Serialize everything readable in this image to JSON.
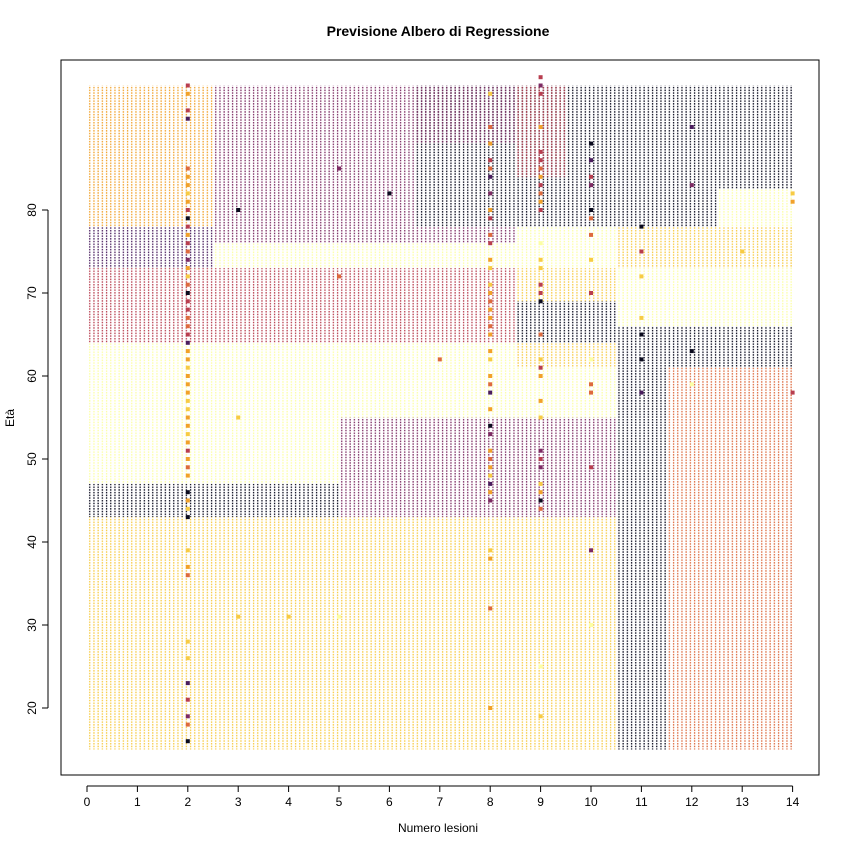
{
  "chart_data": {
    "type": "scatter",
    "title": "Previsione Albero di Regressione",
    "xlabel": "Numero lesioni",
    "ylabel": "Età",
    "xlim": [
      -1,
      15
    ],
    "ylim": [
      13,
      98
    ],
    "xticks": [
      "0",
      "1",
      "2",
      "3",
      "4",
      "5",
      "6",
      "7",
      "8",
      "9",
      "10",
      "11",
      "12",
      "13",
      "14"
    ],
    "yticks": [
      "20",
      "30",
      "40",
      "50",
      "60",
      "70",
      "80"
    ],
    "grid": false,
    "legend": "none",
    "colors": {
      "level0": "#fcffa4",
      "level1": "#f7cb44",
      "level2": "#f1a12a",
      "level3": "#dd6a3e",
      "level4": "#b83e4f",
      "level5": "#7d2b63",
      "level6": "#4a1d5e",
      "level7": "#0b0b1e"
    },
    "regions": [
      {
        "xmin": 0,
        "xmax": 2.5,
        "ymin": 78,
        "ymax": 95,
        "level": 2
      },
      {
        "xmin": 2.5,
        "xmax": 6.5,
        "ymin": 78,
        "ymax": 95,
        "level": 5
      },
      {
        "xmin": 6.5,
        "xmax": 9.5,
        "ymin": 78,
        "ymax": 95,
        "level": 7
      },
      {
        "xmin": 9.5,
        "xmax": 12.5,
        "ymin": 78,
        "ymax": 95,
        "level": 7
      },
      {
        "xmin": 12.5,
        "xmax": 14,
        "ymin": 82.5,
        "ymax": 95,
        "level": 7
      },
      {
        "xmin": 12.5,
        "xmax": 14,
        "ymin": 78,
        "ymax": 82.5,
        "level": 0
      },
      {
        "xmin": 6.5,
        "xmax": 8.5,
        "ymin": 88,
        "ymax": 95,
        "level": 5
      },
      {
        "xmin": 8.5,
        "xmax": 9.5,
        "ymin": 84,
        "ymax": 95,
        "level": 4
      },
      {
        "xmin": 0,
        "xmax": 2.5,
        "ymin": 73,
        "ymax": 78,
        "level": 6
      },
      {
        "xmin": 2.5,
        "xmax": 8.5,
        "ymin": 76,
        "ymax": 78,
        "level": 5
      },
      {
        "xmin": 8.5,
        "xmax": 10.5,
        "ymin": 73,
        "ymax": 78,
        "level": 0
      },
      {
        "xmin": 10.5,
        "xmax": 14,
        "ymin": 73,
        "ymax": 78,
        "level": 1
      },
      {
        "xmin": 2.5,
        "xmax": 8.5,
        "ymin": 73,
        "ymax": 76,
        "level": 0
      },
      {
        "xmin": 0,
        "xmax": 8.5,
        "ymin": 64,
        "ymax": 73,
        "level": 4
      },
      {
        "xmin": 8.5,
        "xmax": 10.5,
        "ymin": 69,
        "ymax": 73,
        "level": 1
      },
      {
        "xmin": 8.5,
        "xmax": 10.5,
        "ymin": 64,
        "ymax": 69,
        "level": 7
      },
      {
        "xmin": 10.5,
        "xmax": 14,
        "ymin": 66,
        "ymax": 73,
        "level": 0
      },
      {
        "xmin": 10.5,
        "xmax": 14,
        "ymin": 61,
        "ymax": 66,
        "level": 7
      },
      {
        "xmin": 0,
        "xmax": 8.5,
        "ymin": 61,
        "ymax": 64,
        "level": 0
      },
      {
        "xmin": 8.5,
        "xmax": 10.5,
        "ymin": 61,
        "ymax": 64,
        "level": 1
      },
      {
        "xmin": 0,
        "xmax": 5,
        "ymin": 47,
        "ymax": 61,
        "level": 0
      },
      {
        "xmin": 5,
        "xmax": 10.5,
        "ymin": 55,
        "ymax": 61,
        "level": 0
      },
      {
        "xmin": 10.5,
        "xmax": 11.5,
        "ymin": 15,
        "ymax": 61,
        "level": 7
      },
      {
        "xmin": 11.5,
        "xmax": 14,
        "ymin": 15,
        "ymax": 61,
        "level": 3
      },
      {
        "xmin": 5,
        "xmax": 10.5,
        "ymin": 43,
        "ymax": 55,
        "level": 5
      },
      {
        "xmin": 0,
        "xmax": 5,
        "ymin": 43,
        "ymax": 47,
        "level": 7
      },
      {
        "xmin": 0,
        "xmax": 10.5,
        "ymin": 15,
        "ymax": 43,
        "level": 1
      }
    ],
    "points": [
      {
        "x": 2,
        "y": 95,
        "level": 4
      },
      {
        "x": 2,
        "y": 94,
        "level": 2
      },
      {
        "x": 2,
        "y": 92,
        "level": 4
      },
      {
        "x": 2,
        "y": 91,
        "level": 6
      },
      {
        "x": 2,
        "y": 85,
        "level": 3
      },
      {
        "x": 2,
        "y": 84,
        "level": 2
      },
      {
        "x": 2,
        "y": 83,
        "level": 2
      },
      {
        "x": 2,
        "y": 82,
        "level": 1
      },
      {
        "x": 2,
        "y": 81,
        "level": 2
      },
      {
        "x": 2,
        "y": 80,
        "level": 4
      },
      {
        "x": 2,
        "y": 79,
        "level": 7
      },
      {
        "x": 2,
        "y": 78,
        "level": 4
      },
      {
        "x": 2,
        "y": 77,
        "level": 2
      },
      {
        "x": 2,
        "y": 76,
        "level": 4
      },
      {
        "x": 2,
        "y": 75,
        "level": 3
      },
      {
        "x": 2,
        "y": 74,
        "level": 5
      },
      {
        "x": 2,
        "y": 73,
        "level": 2
      },
      {
        "x": 2,
        "y": 72,
        "level": 1
      },
      {
        "x": 2,
        "y": 71,
        "level": 3
      },
      {
        "x": 2,
        "y": 70,
        "level": 7
      },
      {
        "x": 2,
        "y": 69,
        "level": 4
      },
      {
        "x": 2,
        "y": 68,
        "level": 4
      },
      {
        "x": 2,
        "y": 67,
        "level": 3
      },
      {
        "x": 2,
        "y": 66,
        "level": 3
      },
      {
        "x": 2,
        "y": 65,
        "level": 4
      },
      {
        "x": 2,
        "y": 64,
        "level": 6
      },
      {
        "x": 2,
        "y": 63,
        "level": 2
      },
      {
        "x": 2,
        "y": 62,
        "level": 2
      },
      {
        "x": 2,
        "y": 61,
        "level": 1
      },
      {
        "x": 2,
        "y": 60,
        "level": 2
      },
      {
        "x": 2,
        "y": 59,
        "level": 2
      },
      {
        "x": 2,
        "y": 58,
        "level": 2
      },
      {
        "x": 2,
        "y": 57,
        "level": 1
      },
      {
        "x": 2,
        "y": 56,
        "level": 1
      },
      {
        "x": 2,
        "y": 55,
        "level": 2
      },
      {
        "x": 2,
        "y": 54,
        "level": 2
      },
      {
        "x": 2,
        "y": 53,
        "level": 1
      },
      {
        "x": 2,
        "y": 52,
        "level": 2
      },
      {
        "x": 2,
        "y": 51,
        "level": 4
      },
      {
        "x": 2,
        "y": 50,
        "level": 2
      },
      {
        "x": 2,
        "y": 49,
        "level": 3
      },
      {
        "x": 2,
        "y": 48,
        "level": 2
      },
      {
        "x": 2,
        "y": 46,
        "level": 7
      },
      {
        "x": 2,
        "y": 45,
        "level": 2
      },
      {
        "x": 2,
        "y": 44,
        "level": 1
      },
      {
        "x": 2,
        "y": 43,
        "level": 7
      },
      {
        "x": 2,
        "y": 39,
        "level": 1
      },
      {
        "x": 2,
        "y": 37,
        "level": 2
      },
      {
        "x": 2,
        "y": 36,
        "level": 3
      },
      {
        "x": 2,
        "y": 28,
        "level": 1
      },
      {
        "x": 2,
        "y": 26,
        "level": 1
      },
      {
        "x": 2,
        "y": 23,
        "level": 6
      },
      {
        "x": 2,
        "y": 21,
        "level": 4
      },
      {
        "x": 2,
        "y": 19,
        "level": 5
      },
      {
        "x": 2,
        "y": 18,
        "level": 3
      },
      {
        "x": 2,
        "y": 16,
        "level": 7
      },
      {
        "x": 3,
        "y": 80,
        "level": 7
      },
      {
        "x": 3,
        "y": 55,
        "level": 1
      },
      {
        "x": 3,
        "y": 31,
        "level": 1
      },
      {
        "x": 4,
        "y": 31,
        "level": 1
      },
      {
        "x": 5,
        "y": 85,
        "level": 5
      },
      {
        "x": 5,
        "y": 72,
        "level": 3
      },
      {
        "x": 5,
        "y": 31,
        "level": 0
      },
      {
        "x": 6,
        "y": 82,
        "level": 7
      },
      {
        "x": 7,
        "y": 62,
        "level": 3
      },
      {
        "x": 8,
        "y": 94,
        "level": 1
      },
      {
        "x": 8,
        "y": 90,
        "level": 3
      },
      {
        "x": 8,
        "y": 88,
        "level": 2
      },
      {
        "x": 8,
        "y": 86,
        "level": 4
      },
      {
        "x": 8,
        "y": 85,
        "level": 3
      },
      {
        "x": 8,
        "y": 84,
        "level": 6
      },
      {
        "x": 8,
        "y": 82,
        "level": 5
      },
      {
        "x": 8,
        "y": 80,
        "level": 2
      },
      {
        "x": 8,
        "y": 79,
        "level": 4
      },
      {
        "x": 8,
        "y": 77,
        "level": 3
      },
      {
        "x": 8,
        "y": 76,
        "level": 4
      },
      {
        "x": 8,
        "y": 74,
        "level": 2
      },
      {
        "x": 8,
        "y": 73,
        "level": 1
      },
      {
        "x": 8,
        "y": 71,
        "level": 1
      },
      {
        "x": 8,
        "y": 70,
        "level": 2
      },
      {
        "x": 8,
        "y": 69,
        "level": 3
      },
      {
        "x": 8,
        "y": 68,
        "level": 2
      },
      {
        "x": 8,
        "y": 67,
        "level": 2
      },
      {
        "x": 8,
        "y": 66,
        "level": 3
      },
      {
        "x": 8,
        "y": 65,
        "level": 2
      },
      {
        "x": 8,
        "y": 63,
        "level": 2
      },
      {
        "x": 8,
        "y": 62,
        "level": 1
      },
      {
        "x": 8,
        "y": 60,
        "level": 2
      },
      {
        "x": 8,
        "y": 59,
        "level": 3
      },
      {
        "x": 8,
        "y": 58,
        "level": 6
      },
      {
        "x": 8,
        "y": 56,
        "level": 2
      },
      {
        "x": 8,
        "y": 54,
        "level": 7
      },
      {
        "x": 8,
        "y": 53,
        "level": 5
      },
      {
        "x": 8,
        "y": 51,
        "level": 2
      },
      {
        "x": 8,
        "y": 50,
        "level": 3
      },
      {
        "x": 8,
        "y": 49,
        "level": 2
      },
      {
        "x": 8,
        "y": 48,
        "level": 1
      },
      {
        "x": 8,
        "y": 47,
        "level": 6
      },
      {
        "x": 8,
        "y": 46,
        "level": 2
      },
      {
        "x": 8,
        "y": 45,
        "level": 5
      },
      {
        "x": 8,
        "y": 39,
        "level": 1
      },
      {
        "x": 8,
        "y": 38,
        "level": 2
      },
      {
        "x": 8,
        "y": 32,
        "level": 3
      },
      {
        "x": 8,
        "y": 20,
        "level": 2
      },
      {
        "x": 9,
        "y": 96,
        "level": 4
      },
      {
        "x": 9,
        "y": 95,
        "level": 5
      },
      {
        "x": 9,
        "y": 94,
        "level": 4
      },
      {
        "x": 9,
        "y": 90,
        "level": 2
      },
      {
        "x": 9,
        "y": 87,
        "level": 4
      },
      {
        "x": 9,
        "y": 86,
        "level": 4
      },
      {
        "x": 9,
        "y": 85,
        "level": 3
      },
      {
        "x": 9,
        "y": 84,
        "level": 2
      },
      {
        "x": 9,
        "y": 83,
        "level": 4
      },
      {
        "x": 9,
        "y": 82,
        "level": 3
      },
      {
        "x": 9,
        "y": 81,
        "level": 2
      },
      {
        "x": 9,
        "y": 80,
        "level": 4
      },
      {
        "x": 9,
        "y": 76,
        "level": 0
      },
      {
        "x": 9,
        "y": 74,
        "level": 1
      },
      {
        "x": 9,
        "y": 73,
        "level": 1
      },
      {
        "x": 9,
        "y": 71,
        "level": 4
      },
      {
        "x": 9,
        "y": 70,
        "level": 4
      },
      {
        "x": 9,
        "y": 69,
        "level": 7
      },
      {
        "x": 9,
        "y": 65,
        "level": 3
      },
      {
        "x": 9,
        "y": 62,
        "level": 1
      },
      {
        "x": 9,
        "y": 61,
        "level": 4
      },
      {
        "x": 9,
        "y": 60,
        "level": 2
      },
      {
        "x": 9,
        "y": 57,
        "level": 2
      },
      {
        "x": 9,
        "y": 55,
        "level": 1
      },
      {
        "x": 9,
        "y": 51,
        "level": 5
      },
      {
        "x": 9,
        "y": 50,
        "level": 4
      },
      {
        "x": 9,
        "y": 49,
        "level": 5
      },
      {
        "x": 9,
        "y": 47,
        "level": 1
      },
      {
        "x": 9,
        "y": 46,
        "level": 2
      },
      {
        "x": 9,
        "y": 45,
        "level": 7
      },
      {
        "x": 9,
        "y": 44,
        "level": 3
      },
      {
        "x": 9,
        "y": 25,
        "level": 0
      },
      {
        "x": 9,
        "y": 19,
        "level": 1
      },
      {
        "x": 10,
        "y": 88,
        "level": 7
      },
      {
        "x": 10,
        "y": 86,
        "level": 6
      },
      {
        "x": 10,
        "y": 84,
        "level": 4
      },
      {
        "x": 10,
        "y": 83,
        "level": 5
      },
      {
        "x": 10,
        "y": 80,
        "level": 7
      },
      {
        "x": 10,
        "y": 79,
        "level": 3
      },
      {
        "x": 10,
        "y": 77,
        "level": 3
      },
      {
        "x": 10,
        "y": 74,
        "level": 1
      },
      {
        "x": 10,
        "y": 70,
        "level": 4
      },
      {
        "x": 10,
        "y": 62,
        "level": 0
      },
      {
        "x": 10,
        "y": 59,
        "level": 3
      },
      {
        "x": 10,
        "y": 58,
        "level": 3
      },
      {
        "x": 10,
        "y": 49,
        "level": 4
      },
      {
        "x": 10,
        "y": 39,
        "level": 5
      },
      {
        "x": 10,
        "y": 30,
        "level": 0
      },
      {
        "x": 11,
        "y": 78,
        "level": 7
      },
      {
        "x": 11,
        "y": 75,
        "level": 4
      },
      {
        "x": 11,
        "y": 72,
        "level": 1
      },
      {
        "x": 11,
        "y": 67,
        "level": 1
      },
      {
        "x": 11,
        "y": 65,
        "level": 7
      },
      {
        "x": 11,
        "y": 62,
        "level": 7
      },
      {
        "x": 11,
        "y": 58,
        "level": 6
      },
      {
        "x": 12,
        "y": 90,
        "level": 6
      },
      {
        "x": 12,
        "y": 83,
        "level": 5
      },
      {
        "x": 12,
        "y": 63,
        "level": 7
      },
      {
        "x": 12,
        "y": 59,
        "level": 0
      },
      {
        "x": 13,
        "y": 75,
        "level": 1
      },
      {
        "x": 14,
        "y": 82,
        "level": 1
      },
      {
        "x": 14,
        "y": 81,
        "level": 2
      },
      {
        "x": 14,
        "y": 58,
        "level": 4
      }
    ]
  }
}
